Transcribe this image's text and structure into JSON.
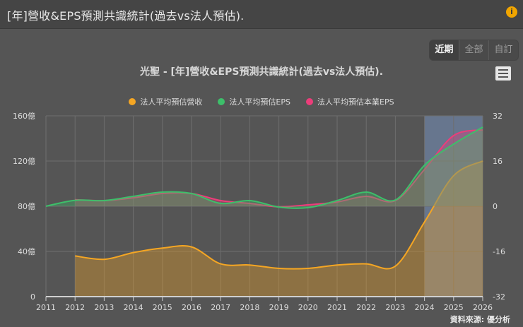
{
  "header": {
    "title": "[年]營收&EPS預測共識統計(過去vs法人預估).",
    "info_icon": "i"
  },
  "range_buttons": [
    {
      "label": "近期",
      "active": true
    },
    {
      "label": "全部",
      "active": false
    },
    {
      "label": "自訂",
      "active": false
    }
  ],
  "menu_icon": "hamburger-menu-icon",
  "source": "資料來源: 優分析",
  "colors": {
    "revenue": "#f5a623",
    "eps": "#3dbf6a",
    "core_eps": "#ec3d7a",
    "forecast_band": "#6b7c99"
  },
  "chart_data": {
    "type": "area",
    "title": "光聖 - [年]營收&EPS預測共識統計(過去vs法人預估).",
    "x": [
      2011,
      2012,
      2013,
      2014,
      2015,
      2016,
      2017,
      2018,
      2019,
      2020,
      2021,
      2022,
      2023,
      2024,
      2025,
      2026
    ],
    "x_tick_labels": [
      "2011",
      "2012",
      "2013",
      "2014",
      "2015",
      "2016",
      "2017",
      "2018",
      "2019",
      "2020",
      "2021",
      "2022",
      "2023",
      "2024",
      "2025",
      "2026"
    ],
    "y_left": {
      "label": "億",
      "range": [
        0,
        160
      ],
      "ticks": [
        "0",
        "40億",
        "80億",
        "120億",
        "160億"
      ]
    },
    "y_right": {
      "range": [
        -32,
        32
      ],
      "ticks": [
        "-32",
        "-16",
        "0",
        "16",
        "32"
      ]
    },
    "forecast_region": [
      2024,
      2026
    ],
    "series": [
      {
        "name": "法人平均預估營收",
        "axis": "left",
        "values": [
          null,
          36,
          33,
          39,
          43,
          44,
          29,
          28,
          25,
          25,
          28,
          29,
          27,
          66,
          107,
          120
        ]
      },
      {
        "name": "法人平均預估EPS",
        "axis": "right",
        "values": [
          0,
          2.1,
          2.0,
          3.5,
          5.0,
          4.5,
          1.0,
          2.0,
          -0.3,
          -0.5,
          2.0,
          5.0,
          2.2,
          14.5,
          22,
          28
        ]
      },
      {
        "name": "法人平均預估本業EPS",
        "axis": "right",
        "values": [
          null,
          2.3,
          2.0,
          3.0,
          4.5,
          4.5,
          2.0,
          1.0,
          -0.2,
          0.5,
          1.5,
          3.5,
          2.0,
          13,
          25,
          27
        ]
      }
    ],
    "legend_position": "top",
    "grid": true
  },
  "legend": [
    {
      "label": "法人平均預估營收"
    },
    {
      "label": "法人平均預估EPS"
    },
    {
      "label": "法人平均預估本業EPS"
    }
  ]
}
